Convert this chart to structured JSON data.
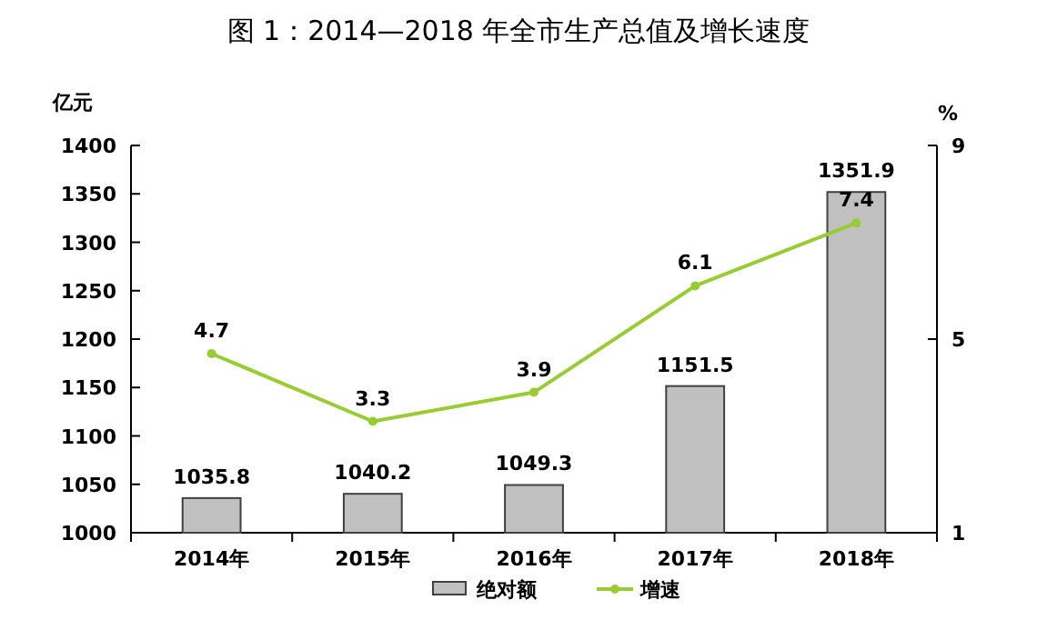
{
  "chart_data": {
    "type": "bar",
    "title": "图 1：2014—2018 年全市生产总值及增长速度",
    "categories": [
      "2014年",
      "2015年",
      "2016年",
      "2017年",
      "2018年"
    ],
    "series": [
      {
        "name": "绝对额",
        "color": "#c0c0c0",
        "values": [
          1035.8,
          1040.2,
          1049.3,
          1151.5,
          1351.9
        ]
      },
      {
        "name": "增速",
        "type": "line",
        "axis": "y2",
        "color": "#99cc33",
        "values": [
          4.7,
          3.3,
          3.9,
          6.1,
          7.4
        ]
      }
    ],
    "ylabel": "亿元",
    "y2label": "%",
    "ylim": [
      1000,
      1400
    ],
    "yticks": [
      1000,
      1050,
      1100,
      1150,
      1200,
      1250,
      1300,
      1350,
      1400
    ],
    "y2lim": [
      1,
      9
    ],
    "y2ticks": [
      1,
      5,
      9
    ],
    "data_labels": true,
    "legend": "bottom",
    "marker": "circle",
    "grid": false
  }
}
